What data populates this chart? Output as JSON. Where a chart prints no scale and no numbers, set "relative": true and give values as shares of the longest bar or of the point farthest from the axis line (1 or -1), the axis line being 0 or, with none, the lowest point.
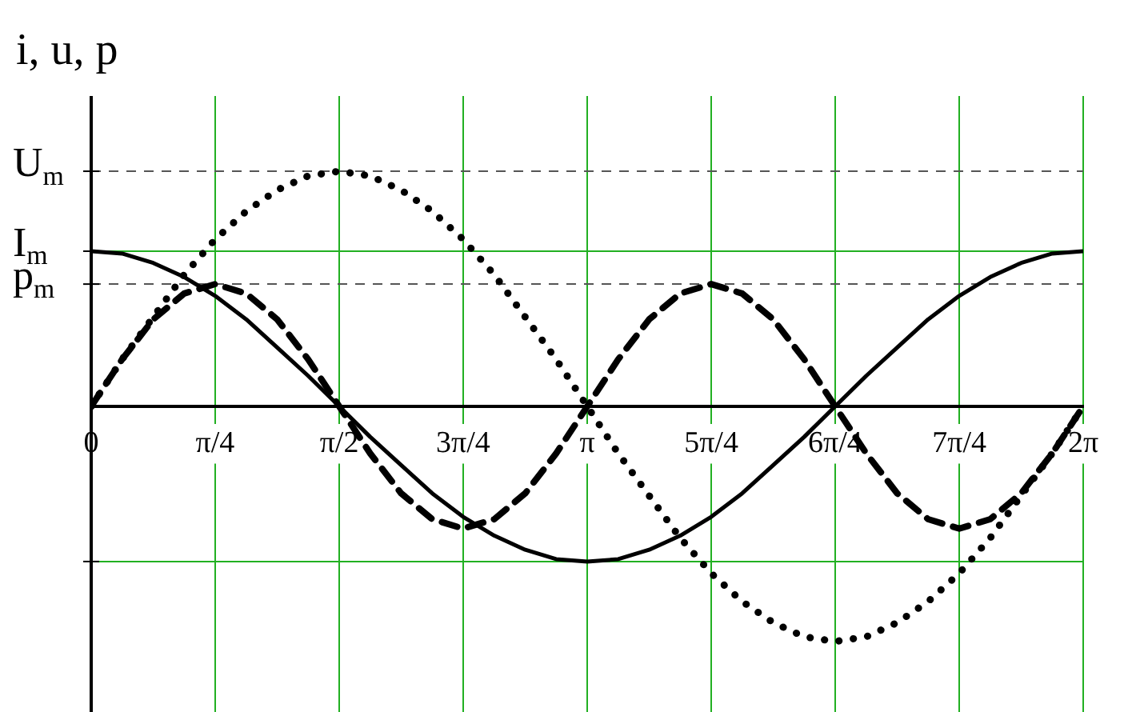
{
  "chart_data": {
    "type": "line",
    "ylabel": "i, u, p",
    "relative": true,
    "x": [
      0,
      0.196,
      0.393,
      0.589,
      0.785,
      0.982,
      1.178,
      1.374,
      1.571,
      1.767,
      1.963,
      2.16,
      2.356,
      2.553,
      2.749,
      2.945,
      3.142,
      3.338,
      3.534,
      3.731,
      3.927,
      4.123,
      4.32,
      4.516,
      4.712,
      4.909,
      5.105,
      5.301,
      5.498,
      5.694,
      5.89,
      6.087,
      6.283
    ],
    "xlim": [
      0,
      6.283
    ],
    "xticks": [
      {
        "value": 0,
        "label": "0"
      },
      {
        "value": 0.785,
        "label": "π/4"
      },
      {
        "value": 1.571,
        "label": "π/2"
      },
      {
        "value": 2.356,
        "label": "3π/4"
      },
      {
        "value": 3.142,
        "label": "π"
      },
      {
        "value": 3.927,
        "label": "5π/4"
      },
      {
        "value": 4.712,
        "label": "6π/4"
      },
      {
        "value": 5.498,
        "label": "7π/4"
      },
      {
        "value": 6.283,
        "label": "2π"
      }
    ],
    "grid": "x",
    "legend": false,
    "marker": "none",
    "series": [
      {
        "color": "#000000",
        "line_style": "solid",
        "values": [
          0.66,
          0.65,
          0.61,
          0.55,
          0.47,
          0.37,
          0.25,
          0.13,
          0,
          -0.13,
          -0.25,
          -0.37,
          -0.47,
          -0.55,
          -0.61,
          -0.65,
          -0.66,
          -0.65,
          -0.61,
          -0.55,
          -0.47,
          -0.37,
          -0.25,
          -0.13,
          0,
          0.13,
          0.25,
          0.37,
          0.47,
          0.55,
          0.61,
          0.65,
          0.66
        ]
      },
      {
        "color": "#000000",
        "line_style": "dotted",
        "values": [
          0,
          0.2,
          0.38,
          0.56,
          0.71,
          0.83,
          0.92,
          0.98,
          1,
          0.98,
          0.92,
          0.83,
          0.71,
          0.56,
          0.38,
          0.2,
          0,
          -0.2,
          -0.38,
          -0.56,
          -0.71,
          -0.83,
          -0.92,
          -0.98,
          -1,
          -0.98,
          -0.92,
          -0.83,
          -0.71,
          -0.56,
          -0.38,
          -0.2,
          0
        ]
      },
      {
        "color": "#000000",
        "line_style": "dashed",
        "values": [
          0,
          0.2,
          0.37,
          0.48,
          0.52,
          0.48,
          0.37,
          0.2,
          0,
          -0.2,
          -0.37,
          -0.48,
          -0.52,
          -0.48,
          -0.37,
          -0.2,
          0,
          0.2,
          0.37,
          0.48,
          0.52,
          0.48,
          0.37,
          0.2,
          0,
          -0.2,
          -0.37,
          -0.48,
          -0.52,
          -0.48,
          -0.37,
          -0.2,
          0
        ]
      }
    ],
    "ref_lines": [
      {
        "axis": "y",
        "value": 1,
        "label": "U$_{m}$",
        "color": "#555555",
        "line_style": "dashed"
      },
      {
        "axis": "y",
        "value": 0.66,
        "label": "I$_{m}$",
        "color": "#22b022",
        "line_style": "solid"
      },
      {
        "axis": "y",
        "value": 0.52,
        "label": "p$_{m}$",
        "color": "#555555",
        "line_style": "dashed"
      },
      {
        "axis": "y",
        "value": -0.66,
        "label": null,
        "color": "#22b022",
        "line_style": "solid"
      }
    ]
  }
}
